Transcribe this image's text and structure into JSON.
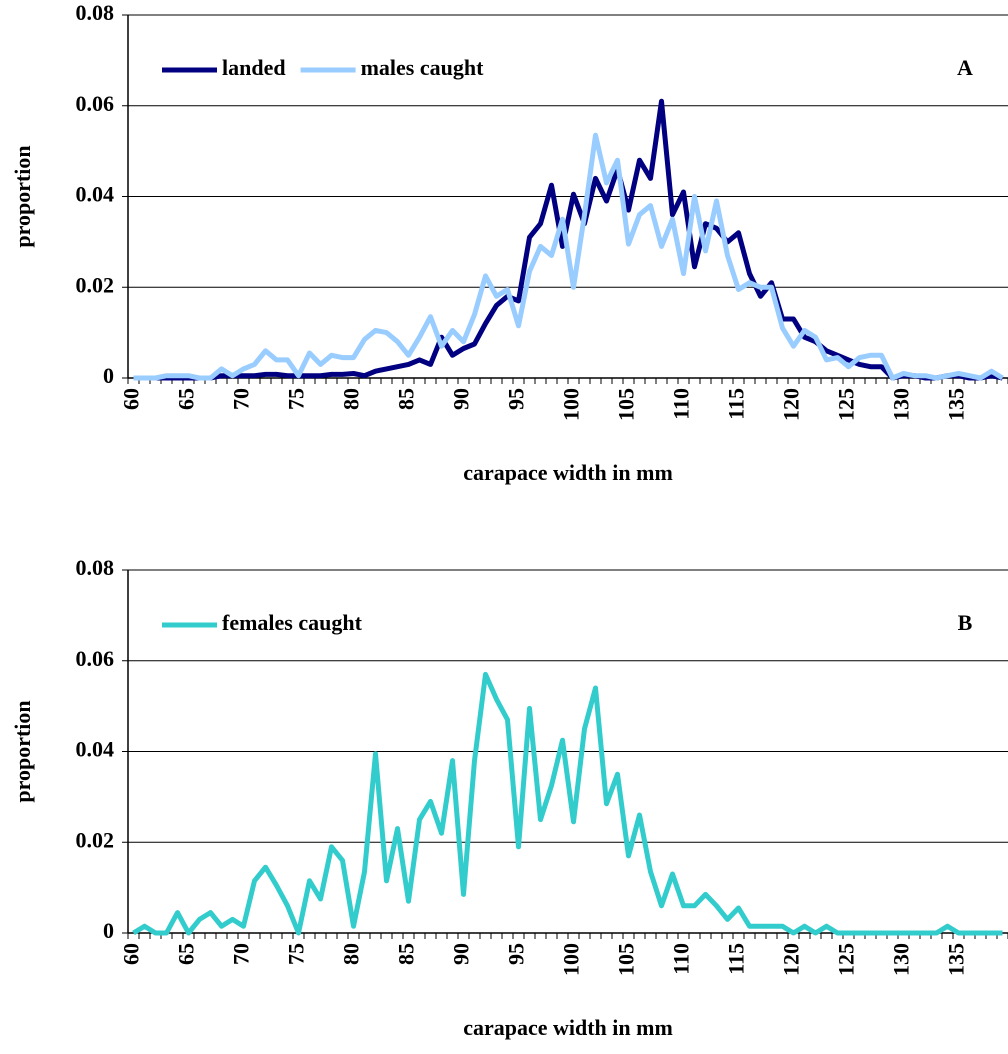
{
  "chart_data": [
    {
      "type": "line",
      "annotation": "A",
      "xlabel": "carapace width in mm",
      "ylabel": "proportion",
      "categories": [
        "60",
        null,
        null,
        null,
        null,
        "65",
        null,
        null,
        null,
        null,
        "70",
        null,
        null,
        null,
        null,
        "75",
        null,
        null,
        null,
        null,
        "80",
        null,
        null,
        null,
        null,
        "85",
        null,
        null,
        null,
        null,
        "90",
        null,
        null,
        null,
        null,
        "95",
        null,
        null,
        null,
        null,
        "100",
        null,
        null,
        null,
        null,
        "105",
        null,
        null,
        null,
        null,
        "110",
        null,
        null,
        null,
        null,
        "115",
        null,
        null,
        null,
        null,
        "120",
        null,
        null,
        null,
        null,
        "125",
        null,
        null,
        null,
        null,
        "130",
        null,
        null,
        null,
        null,
        "135",
        null,
        null,
        null,
        null
      ],
      "series": [
        {
          "name": "landed",
          "color": "#000080",
          "values": [
            0,
            0,
            0,
            0,
            0,
            0,
            0,
            0,
            0.0005,
            0.0005,
            0.0005,
            0.0005,
            0.0008,
            0.0008,
            0.0005,
            0.0005,
            0.0005,
            0.0005,
            0.0008,
            0.0008,
            0.001,
            0.0005,
            0.0015,
            0.002,
            0.0025,
            0.003,
            0.004,
            0.003,
            0.009,
            0.005,
            0.0065,
            0.0075,
            0.012,
            0.016,
            0.018,
            0.017,
            0.031,
            0.034,
            0.0425,
            0.029,
            0.0405,
            0.034,
            0.044,
            0.039,
            0.046,
            0.037,
            0.048,
            0.044,
            0.061,
            0.036,
            0.041,
            0.0245,
            0.034,
            0.033,
            0.03,
            0.032,
            0.023,
            0.018,
            0.021,
            0.013,
            0.013,
            0.009,
            0.008,
            0.006,
            0.005,
            0.004,
            0.003,
            0.0025,
            0.0025,
            0,
            0.0005,
            0.0005,
            0,
            0,
            0.0005,
            0.0005,
            0,
            0,
            0.0005,
            0
          ]
        },
        {
          "name": "males caught",
          "color": "#99ccff",
          "values": [
            0,
            0,
            0,
            0.0005,
            0.0005,
            0.0005,
            0,
            0,
            0.002,
            0.0005,
            0.002,
            0.003,
            0.006,
            0.004,
            0.004,
            0.0005,
            0.0055,
            0.003,
            0.005,
            0.0045,
            0.0045,
            0.0085,
            0.0105,
            0.01,
            0.008,
            0.005,
            0.009,
            0.0135,
            0.007,
            0.0105,
            0.008,
            0.014,
            0.0225,
            0.018,
            0.0195,
            0.0115,
            0.0235,
            0.029,
            0.027,
            0.035,
            0.02,
            0.036,
            0.0535,
            0.043,
            0.048,
            0.0295,
            0.036,
            0.038,
            0.029,
            0.035,
            0.023,
            0.04,
            0.028,
            0.039,
            0.027,
            0.0195,
            0.021,
            0.02,
            0.02,
            0.011,
            0.007,
            0.0105,
            0.009,
            0.004,
            0.0045,
            0.0025,
            0.0045,
            0.005,
            0.005,
            0,
            0.001,
            0.0005,
            0.0005,
            0,
            0.0005,
            0.001,
            0.0005,
            0,
            0.0015,
            0
          ]
        }
      ],
      "ylim": [
        0,
        0.08
      ],
      "yticks": [
        0,
        0.02,
        0.04,
        0.06,
        0.08
      ],
      "grid": true,
      "legend": "top-left"
    },
    {
      "type": "line",
      "annotation": "B",
      "xlabel": "carapace width in mm",
      "ylabel": "proportion",
      "categories": [
        "60",
        null,
        null,
        null,
        null,
        "65",
        null,
        null,
        null,
        null,
        "70",
        null,
        null,
        null,
        null,
        "75",
        null,
        null,
        null,
        null,
        "80",
        null,
        null,
        null,
        null,
        "85",
        null,
        null,
        null,
        null,
        "90",
        null,
        null,
        null,
        null,
        "95",
        null,
        null,
        null,
        null,
        "100",
        null,
        null,
        null,
        null,
        "105",
        null,
        null,
        null,
        null,
        "110",
        null,
        null,
        null,
        null,
        "115",
        null,
        null,
        null,
        null,
        "120",
        null,
        null,
        null,
        null,
        "125",
        null,
        null,
        null,
        null,
        "130",
        null,
        null,
        null,
        null,
        "135",
        null,
        null,
        null,
        null
      ],
      "series": [
        {
          "name": "females caught",
          "color": "#33cccc",
          "values": [
            0,
            0.0015,
            0,
            0,
            0.0045,
            0,
            0.003,
            0.0045,
            0.0015,
            0.003,
            0.0015,
            0.0115,
            0.0145,
            0.0105,
            0.006,
            0,
            0.0115,
            0.0075,
            0.019,
            0.016,
            0.0015,
            0.0135,
            0.0395,
            0.0115,
            0.023,
            0.007,
            0.025,
            0.029,
            0.022,
            0.038,
            0.0085,
            0.038,
            0.057,
            0.0515,
            0.047,
            0.019,
            0.0495,
            0.025,
            0.0325,
            0.0425,
            0.0245,
            0.045,
            0.054,
            0.0285,
            0.035,
            0.017,
            0.026,
            0.0135,
            0.006,
            0.013,
            0.006,
            0.006,
            0.0085,
            0.006,
            0.003,
            0.0055,
            0.0015,
            0.0015,
            0.0015,
            0.0015,
            0,
            0.0015,
            0,
            0.0015,
            0,
            0,
            0,
            0,
            0,
            0,
            0,
            0,
            0,
            0,
            0.0015,
            0,
            0,
            0,
            0,
            0
          ]
        }
      ],
      "ylim": [
        0,
        0.08
      ],
      "yticks": [
        0,
        0.02,
        0.04,
        0.06,
        0.08
      ],
      "grid": true,
      "legend": "top-left"
    }
  ]
}
